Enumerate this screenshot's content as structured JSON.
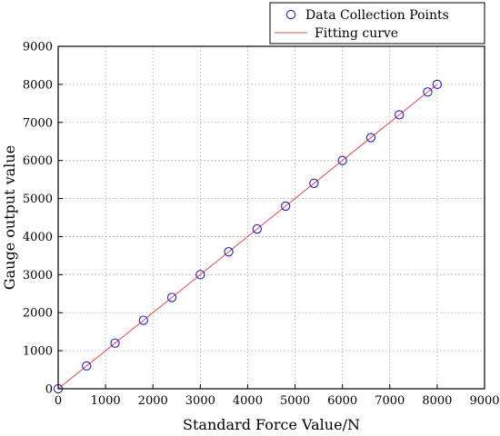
{
  "chart_data": {
    "type": "scatter",
    "xlabel": "Standard Force Value/N",
    "ylabel": "Gauge output value",
    "xlim": [
      0,
      9000
    ],
    "ylim": [
      0,
      9000
    ],
    "xticks": [
      "0",
      "1000",
      "2000",
      "3000",
      "4000",
      "5000",
      "6000",
      "7000",
      "8000",
      "9000"
    ],
    "yticks": [
      "0",
      "1000",
      "2000",
      "3000",
      "4000",
      "5000",
      "6000",
      "7000",
      "8000",
      "9000"
    ],
    "grid": true,
    "legend_position": "top-right",
    "series": [
      {
        "name": "Data Collection Points",
        "kind": "markers",
        "marker": "open-circle",
        "color": "#2020cc",
        "x": [
          0,
          600,
          1200,
          1800,
          2400,
          3000,
          3600,
          4200,
          4800,
          5400,
          6000,
          6600,
          7200,
          7800,
          8000
        ],
        "y": [
          0,
          600,
          1200,
          1800,
          2400,
          3000,
          3600,
          4200,
          4800,
          5400,
          6000,
          6600,
          7200,
          7800,
          8000
        ]
      },
      {
        "name": "Fitting curve",
        "kind": "line",
        "color": "#e8474a",
        "x": [
          0,
          8000
        ],
        "y": [
          0,
          8000
        ]
      }
    ]
  }
}
